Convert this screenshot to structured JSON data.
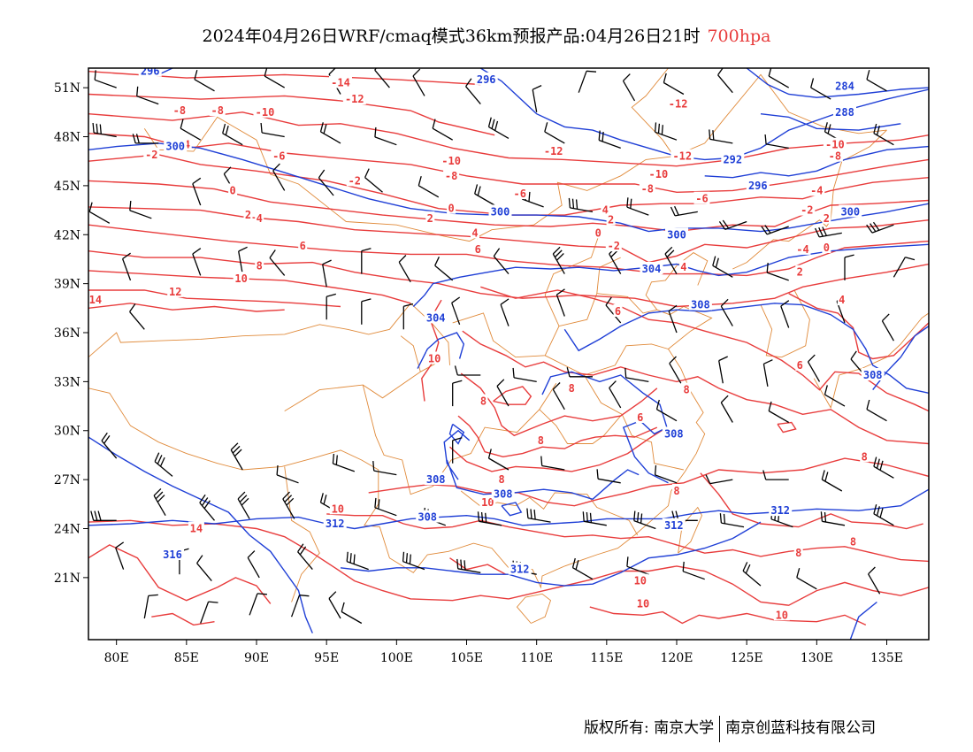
{
  "title": {
    "text": "2024年04月26日WRF/cmaq模式36km预报产品:04月26日21时",
    "level": "700hpa"
  },
  "axes": {
    "lat_ticks": [
      "51N",
      "48N",
      "45N",
      "42N",
      "39N",
      "36N",
      "33N",
      "30N",
      "27N",
      "24N",
      "21N"
    ],
    "lon_ticks": [
      "80E",
      "85E",
      "90E",
      "95E",
      "100E",
      "105E",
      "110E",
      "115E",
      "120E",
      "125E",
      "130E",
      "135E"
    ]
  },
  "colors": {
    "temperature_contour": "#e83c3c",
    "height_contour": "#1f3fd6",
    "boundary": "#e08a3a",
    "wind_barb": "#000000"
  },
  "temperature_labels": [
    {
      "text": "-14",
      "lon": 96,
      "lat": 51.3
    },
    {
      "text": "-12",
      "lon": 97,
      "lat": 50.3
    },
    {
      "text": "-8",
      "lon": 84.5,
      "lat": 49.6
    },
    {
      "text": "-8",
      "lon": 87.2,
      "lat": 49.6
    },
    {
      "text": "-10",
      "lon": 90.6,
      "lat": 49.5
    },
    {
      "text": "-4",
      "lon": 84.8,
      "lat": 47.5
    },
    {
      "text": "-2",
      "lon": 82.5,
      "lat": 46.9
    },
    {
      "text": "-6",
      "lon": 91.6,
      "lat": 46.8
    },
    {
      "text": "-2",
      "lon": 97,
      "lat": 45.3
    },
    {
      "text": "-10",
      "lon": 103.9,
      "lat": 46.5
    },
    {
      "text": "-8",
      "lon": 103.9,
      "lat": 45.6
    },
    {
      "text": "-6",
      "lon": 108.8,
      "lat": 44.5
    },
    {
      "text": "-12",
      "lon": 120.1,
      "lat": 50.0
    },
    {
      "text": "-12",
      "lon": 111.2,
      "lat": 47.1
    },
    {
      "text": "-12",
      "lon": 120.4,
      "lat": 46.8
    },
    {
      "text": "-10",
      "lon": 118.7,
      "lat": 45.7
    },
    {
      "text": "-8",
      "lon": 117.9,
      "lat": 44.8
    },
    {
      "text": "-6",
      "lon": 121.8,
      "lat": 44.2
    },
    {
      "text": "0",
      "lon": 88.3,
      "lat": 44.7
    },
    {
      "text": "2",
      "lon": 89.4,
      "lat": 43.2
    },
    {
      "text": "4",
      "lon": 90.2,
      "lat": 43.0
    },
    {
      "text": "0",
      "lon": 103.9,
      "lat": 43.6
    },
    {
      "text": "2",
      "lon": 102.4,
      "lat": 43.0
    },
    {
      "text": "4",
      "lon": 114.9,
      "lat": 43.5
    },
    {
      "text": "2",
      "lon": 115.3,
      "lat": 42.9
    },
    {
      "text": "0",
      "lon": 114.4,
      "lat": 42.1
    },
    {
      "text": "4",
      "lon": 105.6,
      "lat": 42.1
    },
    {
      "text": "6",
      "lon": 105.8,
      "lat": 41.1
    },
    {
      "text": "-2",
      "lon": 115.5,
      "lat": 41.3
    },
    {
      "text": "-10",
      "lon": 131.3,
      "lat": 47.5
    },
    {
      "text": "-8",
      "lon": 131.3,
      "lat": 46.8
    },
    {
      "text": "-4",
      "lon": 130,
      "lat": 44.7
    },
    {
      "text": "-2",
      "lon": 129.3,
      "lat": 43.5
    },
    {
      "text": "2",
      "lon": 130.7,
      "lat": 43.0
    },
    {
      "text": "0",
      "lon": 130.7,
      "lat": 41.2
    },
    {
      "text": "-4",
      "lon": 129,
      "lat": 41.1
    },
    {
      "text": "2",
      "lon": 128.8,
      "lat": 39.7
    },
    {
      "text": "4",
      "lon": 120.5,
      "lat": 40.0
    },
    {
      "text": "4",
      "lon": 131.8,
      "lat": 38.0
    },
    {
      "text": "6",
      "lon": 93.3,
      "lat": 41.3
    },
    {
      "text": "8",
      "lon": 90.2,
      "lat": 40.1
    },
    {
      "text": "10",
      "lon": 88.9,
      "lat": 39.3
    },
    {
      "text": "12",
      "lon": 84.2,
      "lat": 38.5
    },
    {
      "text": "14",
      "lon": 78.5,
      "lat": 38.0
    },
    {
      "text": "6",
      "lon": 115.8,
      "lat": 37.3
    },
    {
      "text": "6",
      "lon": 128.8,
      "lat": 34.0
    },
    {
      "text": "10",
      "lon": 102.7,
      "lat": 34.4
    },
    {
      "text": "8",
      "lon": 112.5,
      "lat": 32.6
    },
    {
      "text": "8",
      "lon": 120.7,
      "lat": 32.5
    },
    {
      "text": "8",
      "lon": 106.2,
      "lat": 31.8
    },
    {
      "text": "6",
      "lon": 117.4,
      "lat": 30.8
    },
    {
      "text": "8",
      "lon": 110.3,
      "lat": 29.4
    },
    {
      "text": "8",
      "lon": 107.5,
      "lat": 27.0
    },
    {
      "text": "10",
      "lon": 106.5,
      "lat": 25.6
    },
    {
      "text": "8",
      "lon": 120.0,
      "lat": 26.3
    },
    {
      "text": "8",
      "lon": 133.4,
      "lat": 28.4
    },
    {
      "text": "10",
      "lon": 95.8,
      "lat": 25.2
    },
    {
      "text": "14",
      "lon": 85.7,
      "lat": 24.0
    },
    {
      "text": "8",
      "lon": 128.7,
      "lat": 22.5
    },
    {
      "text": "8",
      "lon": 132.6,
      "lat": 23.2
    },
    {
      "text": "10",
      "lon": 117.4,
      "lat": 20.8
    },
    {
      "text": "10",
      "lon": 117.6,
      "lat": 19.4
    },
    {
      "text": "10",
      "lon": 127.5,
      "lat": 18.7
    }
  ],
  "height_labels": [
    {
      "text": "296",
      "lon": 82.4,
      "lat": 52.0
    },
    {
      "text": "296",
      "lon": 106.4,
      "lat": 51.5
    },
    {
      "text": "300",
      "lon": 84.2,
      "lat": 47.4
    },
    {
      "text": "300",
      "lon": 107.4,
      "lat": 43.4
    },
    {
      "text": "300",
      "lon": 120.0,
      "lat": 42.0
    },
    {
      "text": "300",
      "lon": 132.4,
      "lat": 43.4
    },
    {
      "text": "304",
      "lon": 118.2,
      "lat": 39.9
    },
    {
      "text": "304",
      "lon": 102.8,
      "lat": 36.9
    },
    {
      "text": "284",
      "lon": 132,
      "lat": 51.1
    },
    {
      "text": "288",
      "lon": 132,
      "lat": 49.5
    },
    {
      "text": "292",
      "lon": 124.0,
      "lat": 46.6
    },
    {
      "text": "296",
      "lon": 125.8,
      "lat": 45.0
    },
    {
      "text": "308",
      "lon": 121.7,
      "lat": 37.7
    },
    {
      "text": "308",
      "lon": 134.0,
      "lat": 33.4
    },
    {
      "text": "308",
      "lon": 119.8,
      "lat": 29.8
    },
    {
      "text": "308",
      "lon": 102.8,
      "lat": 27.0
    },
    {
      "text": "308",
      "lon": 107.6,
      "lat": 26.1
    },
    {
      "text": "308",
      "lon": 102.2,
      "lat": 24.7
    },
    {
      "text": "312",
      "lon": 95.6,
      "lat": 24.3
    },
    {
      "text": "312",
      "lon": 119.8,
      "lat": 24.2
    },
    {
      "text": "312",
      "lon": 127.4,
      "lat": 25.1
    },
    {
      "text": "312",
      "lon": 108.8,
      "lat": 21.5
    },
    {
      "text": "316",
      "lon": 84.0,
      "lat": 22.4
    }
  ],
  "footer": {
    "left": "版权所有: 南京大学",
    "right": "南京创蓝科技有限公司"
  }
}
